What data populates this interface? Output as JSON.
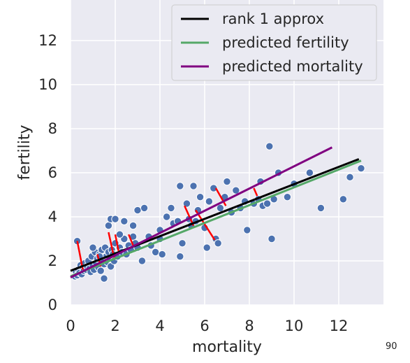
{
  "page_number": "90",
  "chart_data": {
    "type": "scatter",
    "xlabel": "mortality",
    "ylabel": "fertility",
    "xlim": [
      0,
      14
    ],
    "ylim": [
      0,
      14
    ],
    "xticks": [
      "0",
      "2",
      "4",
      "6",
      "8",
      "10",
      "12"
    ],
    "yticks": [
      "0",
      "2",
      "4",
      "6",
      "8",
      "10",
      "12"
    ],
    "grid": true,
    "background": "#eaeaf2",
    "legend_position": "top-right",
    "colors": {
      "points": "#4c72b0",
      "residual": "#ff0000",
      "rank1": "#000000",
      "fertility": "#55a868",
      "mortality": "#800080"
    },
    "points": [
      [
        0.2,
        1.3
      ],
      [
        0.25,
        1.5
      ],
      [
        0.3,
        1.35
      ],
      [
        0.35,
        1.6
      ],
      [
        0.4,
        1.45
      ],
      [
        0.45,
        1.8
      ],
      [
        0.5,
        1.4
      ],
      [
        0.55,
        1.7
      ],
      [
        0.6,
        1.55
      ],
      [
        0.65,
        1.9
      ],
      [
        0.7,
        1.6
      ],
      [
        0.75,
        1.75
      ],
      [
        0.8,
        2.0
      ],
      [
        0.85,
        1.65
      ],
      [
        0.9,
        1.5
      ],
      [
        0.95,
        2.2
      ],
      [
        1.0,
        1.8
      ],
      [
        1.05,
        1.6
      ],
      [
        1.1,
        2.4
      ],
      [
        1.15,
        1.9
      ],
      [
        1.2,
        2.1
      ],
      [
        1.25,
        1.7
      ],
      [
        1.3,
        2.3
      ],
      [
        1.35,
        1.55
      ],
      [
        1.4,
        2.5
      ],
      [
        1.45,
        2.0
      ],
      [
        1.5,
        1.85
      ],
      [
        1.55,
        2.6
      ],
      [
        1.6,
        2.2
      ],
      [
        1.65,
        1.95
      ],
      [
        1.7,
        2.4
      ],
      [
        1.75,
        2.1
      ],
      [
        1.8,
        1.75
      ],
      [
        1.85,
        2.5
      ],
      [
        1.9,
        2.3
      ],
      [
        1.95,
        2.0
      ],
      [
        2.0,
        2.8
      ],
      [
        2.1,
        2.2
      ],
      [
        2.2,
        2.6
      ],
      [
        2.3,
        2.4
      ],
      [
        2.4,
        3.0
      ],
      [
        2.5,
        2.3
      ],
      [
        2.6,
        2.7
      ],
      [
        2.7,
        2.5
      ],
      [
        2.8,
        3.1
      ],
      [
        2.9,
        2.8
      ],
      [
        3.0,
        2.6
      ],
      [
        1.5,
        1.2
      ],
      [
        1.0,
        2.6
      ],
      [
        0.3,
        2.9
      ],
      [
        1.7,
        3.6
      ],
      [
        1.8,
        3.9
      ],
      [
        2.0,
        3.9
      ],
      [
        2.4,
        3.8
      ],
      [
        2.2,
        3.2
      ],
      [
        3.0,
        4.3
      ],
      [
        3.3,
        4.4
      ],
      [
        2.8,
        3.6
      ],
      [
        3.2,
        2.0
      ],
      [
        3.6,
        2.7
      ],
      [
        3.8,
        2.4
      ],
      [
        4.0,
        3.0
      ],
      [
        4.1,
        2.3
      ],
      [
        4.0,
        3.4
      ],
      [
        4.3,
        4.0
      ],
      [
        4.5,
        4.4
      ],
      [
        4.6,
        3.7
      ],
      [
        4.8,
        3.8
      ],
      [
        4.9,
        2.2
      ],
      [
        5.0,
        2.8
      ],
      [
        5.2,
        4.6
      ],
      [
        5.3,
        3.9
      ],
      [
        5.4,
        3.6
      ],
      [
        5.5,
        5.4
      ],
      [
        5.6,
        3.8
      ],
      [
        5.7,
        4.3
      ],
      [
        5.8,
        4.9
      ],
      [
        6.0,
        3.5
      ],
      [
        6.1,
        2.6
      ],
      [
        6.2,
        4.7
      ],
      [
        6.4,
        5.3
      ],
      [
        6.5,
        3.0
      ],
      [
        6.6,
        2.8
      ],
      [
        6.7,
        4.4
      ],
      [
        6.9,
        4.9
      ],
      [
        7.0,
        5.6
      ],
      [
        7.2,
        4.2
      ],
      [
        7.4,
        5.2
      ],
      [
        7.6,
        4.4
      ],
      [
        7.8,
        4.7
      ],
      [
        7.9,
        3.4
      ],
      [
        8.2,
        4.6
      ],
      [
        8.4,
        4.8
      ],
      [
        8.5,
        5.6
      ],
      [
        8.6,
        4.5
      ],
      [
        8.8,
        4.6
      ],
      [
        8.9,
        7.2
      ],
      [
        9.0,
        3.0
      ],
      [
        9.1,
        4.8
      ],
      [
        9.3,
        6.0
      ],
      [
        9.7,
        4.9
      ],
      [
        10.0,
        5.5
      ],
      [
        10.7,
        6.0
      ],
      [
        11.2,
        4.4
      ],
      [
        12.2,
        4.8
      ],
      [
        12.5,
        5.8
      ],
      [
        13.0,
        6.2
      ],
      [
        4.9,
        5.4
      ],
      [
        3.5,
        3.1
      ],
      [
        1.3,
        2.2
      ]
    ],
    "residual_segments": [
      [
        [
          0.3,
          2.9
        ],
        [
          0.55,
          1.6
        ]
      ],
      [
        [
          1.2,
          2.3
        ],
        [
          1.35,
          1.75
        ]
      ],
      [
        [
          1.7,
          3.3
        ],
        [
          1.95,
          2.15
        ]
      ],
      [
        [
          2.0,
          3.2
        ],
        [
          2.15,
          2.45
        ]
      ],
      [
        [
          2.6,
          3.2
        ],
        [
          2.8,
          2.7
        ]
      ],
      [
        [
          5.1,
          4.5
        ],
        [
          5.5,
          3.6
        ]
      ],
      [
        [
          5.6,
          4.3
        ],
        [
          6.45,
          2.95
        ]
      ],
      [
        [
          6.5,
          5.3
        ],
        [
          6.95,
          4.5
        ]
      ],
      [
        [
          8.2,
          5.3
        ],
        [
          8.35,
          4.95
        ]
      ]
    ],
    "series": [
      {
        "name": "rank 1 approx",
        "x": [
          0.0,
          12.9
        ],
        "y": [
          1.55,
          6.62
        ]
      },
      {
        "name": "predicted fertility",
        "x": [
          0.0,
          13.0
        ],
        "y": [
          1.3,
          6.55
        ]
      },
      {
        "name": "predicted mortality",
        "x": [
          0.0,
          11.7
        ],
        "y": [
          1.25,
          7.15
        ]
      }
    ]
  }
}
